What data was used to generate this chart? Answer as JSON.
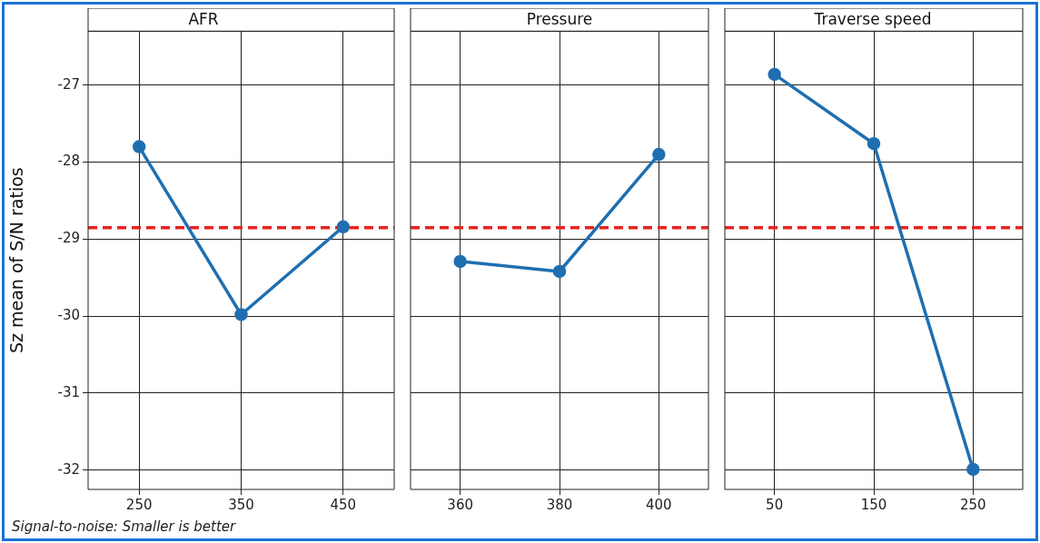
{
  "chart_data": [
    {
      "type": "line",
      "title": "AFR",
      "ylabel": "Sz mean of S/N ratios",
      "categories": [
        "250",
        "350",
        "450"
      ],
      "series": [
        {
          "color": "#1f6fb0",
          "values": [
            -27.8,
            -29.98,
            -28.84
          ]
        }
      ],
      "ylim": [
        -32.25,
        -26.3
      ],
      "yticks": [
        -32,
        -31,
        -30,
        -29,
        -28,
        -27
      ],
      "grid": true,
      "marker": "circle",
      "line_style": "solid",
      "ref_lines": [
        {
          "axis": "y",
          "value": -28.85,
          "color": "#e8231f",
          "line_style": "dashed"
        }
      ],
      "annotations": [
        "Signal-to-noise: Smaller is better"
      ]
    },
    {
      "type": "line",
      "title": "Pressure",
      "categories": [
        "360",
        "380",
        "400"
      ],
      "series": [
        {
          "color": "#1f6fb0",
          "values": [
            -29.29,
            -29.42,
            -27.9
          ]
        }
      ],
      "ylim": [
        -32.25,
        -26.3
      ],
      "yticks": [
        -32,
        -31,
        -30,
        -29,
        -28,
        -27
      ],
      "grid": true,
      "marker": "circle",
      "line_style": "solid",
      "tick_labels": "x",
      "ref_lines": [
        {
          "axis": "y",
          "value": -28.85,
          "color": "#e8231f",
          "line_style": "dashed"
        }
      ]
    },
    {
      "type": "line",
      "title": "Traverse speed",
      "categories": [
        "50",
        "150",
        "250"
      ],
      "series": [
        {
          "color": "#1f6fb0",
          "values": [
            -26.86,
            -27.76,
            -31.99
          ]
        }
      ],
      "ylim": [
        -32.25,
        -26.3
      ],
      "yticks": [
        -32,
        -31,
        -30,
        -29,
        -28,
        -27
      ],
      "grid": true,
      "marker": "circle",
      "line_style": "solid",
      "tick_labels": "x",
      "ref_lines": [
        {
          "axis": "y",
          "value": -28.85,
          "color": "#e8231f",
          "line_style": "dashed"
        }
      ]
    }
  ]
}
